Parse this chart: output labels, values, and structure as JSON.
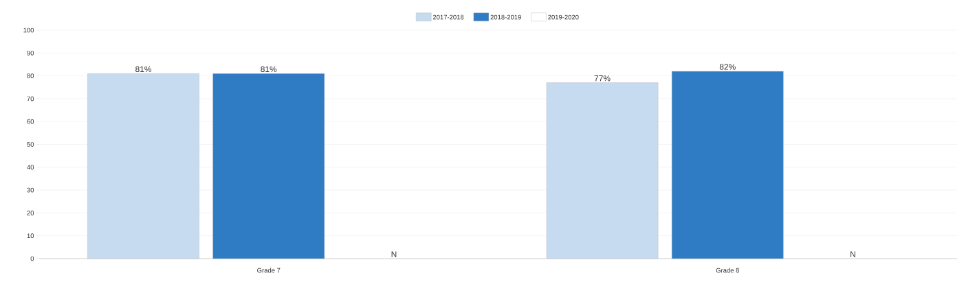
{
  "chart_data": {
    "type": "bar",
    "categories": [
      "Grade 7",
      "Grade 8"
    ],
    "series": [
      {
        "name": "2017-2018",
        "color": "#c6dbf0",
        "values": [
          81,
          77
        ],
        "value_labels": [
          "81%",
          "77%"
        ]
      },
      {
        "name": "2018-2019",
        "color": "#2f7cc5",
        "values": [
          81,
          82
        ],
        "value_labels": [
          "81%",
          "82%"
        ]
      },
      {
        "name": "2019-2020",
        "color": "#ffffff",
        "values": [
          null,
          null
        ],
        "value_labels": [
          "N",
          "N"
        ]
      }
    ],
    "ylim": [
      0,
      100
    ],
    "yticks": [
      0,
      10,
      20,
      30,
      40,
      50,
      60,
      70,
      80,
      90,
      100
    ],
    "grid": "y",
    "legend": "top"
  }
}
